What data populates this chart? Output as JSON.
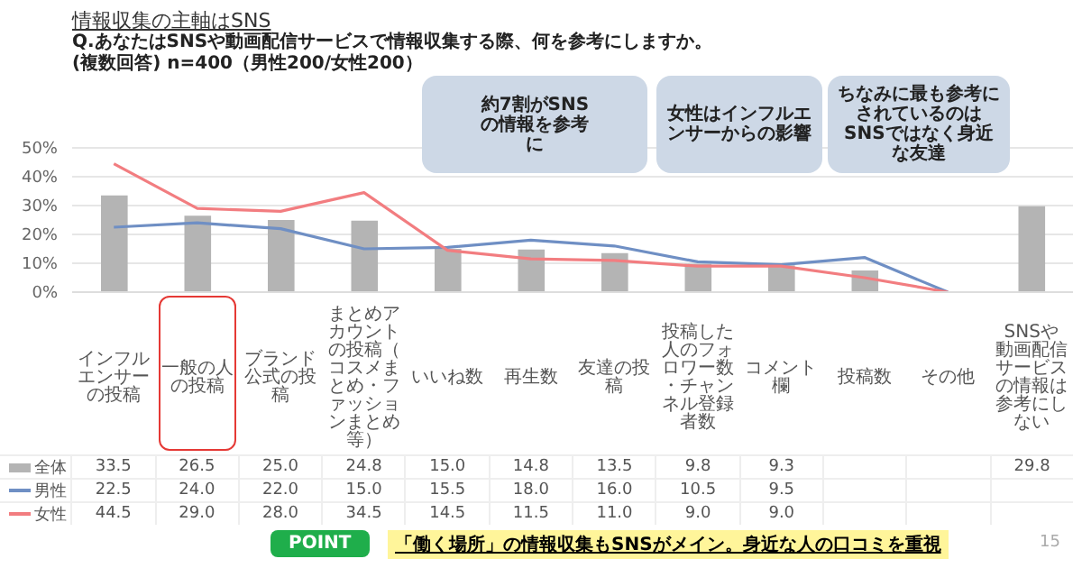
{
  "chart_data": {
    "type": "bar",
    "title": "情報収集の主軸はSNS",
    "subtitle": "Q.あなたはSNSや動画配信サービスで情報収集する際、何を参考にしますか。\n(複数回答) n=400（男性200/女性200）",
    "categories": [
      "インフルエンサーの投稿",
      "一般の人の投稿",
      "ブランド公式の投稿",
      "まとめアカウントの投稿（コスメまとめ・ファッションまとめ等）",
      "いいね数",
      "再生数",
      "友達の投稿",
      "投稿した人のフォロワー数・チャンネル登録者数",
      "コメント欄",
      "投稿数",
      "その他",
      "SNSや動画配信サービスの情報は参考にしない"
    ],
    "series": [
      {
        "name": "全体",
        "color": "#b4b4b4",
        "values": [
          33.5,
          26.5,
          25.0,
          24.8,
          15.0,
          14.8,
          13.5,
          9.8,
          9.3,
          7.5,
          0,
          29.8
        ],
        "value_labels": [
          "33.5",
          "26.5",
          "25.0",
          "24.8",
          "15.0",
          "14.8",
          "13.5",
          "9.8",
          "9.3",
          null,
          null,
          "29.8"
        ]
      },
      {
        "name": "男性",
        "type": "line",
        "color": "#6f8fc4",
        "values": [
          22.5,
          24.0,
          22.0,
          15.0,
          15.5,
          18.0,
          16.0,
          10.5,
          9.5,
          12,
          0,
          null
        ],
        "value_labels": [
          "22.5",
          "24.0",
          "22.0",
          "15.0",
          "15.5",
          "18.0",
          "16.0",
          "10.5",
          "9.5",
          null,
          null,
          null
        ]
      },
      {
        "name": "女性",
        "type": "line",
        "color": "#f27d80",
        "values": [
          44.5,
          29.0,
          28.0,
          34.5,
          14.5,
          11.5,
          11.0,
          9.0,
          9.0,
          5,
          0,
          null
        ],
        "value_labels": [
          "44.5",
          "29.0",
          "28.0",
          "34.5",
          "14.5",
          "11.5",
          "11.0",
          "9.0",
          "9.0",
          null,
          null,
          null
        ]
      }
    ],
    "ylim": [
      0,
      50
    ],
    "yticks": [
      {
        "value": 0,
        "label": "0%"
      },
      {
        "value": 10,
        "label": "10%"
      },
      {
        "value": 20,
        "label": "20%"
      },
      {
        "value": 30,
        "label": "30%"
      },
      {
        "value": 40,
        "label": "40%"
      },
      {
        "value": 50,
        "label": "50%"
      }
    ],
    "grid": "y",
    "legend": "bottom left",
    "annotations": [
      "約7割がSNSの情報を参考に",
      "女性はインフルエンサーからの影響",
      "ちなみに最も参考にされているのはSNSではなく身近な友達",
      "POINT",
      "「働く場所」の情報収集もSNSがメイン。身近な人の口コミを重視",
      "15"
    ]
  }
}
